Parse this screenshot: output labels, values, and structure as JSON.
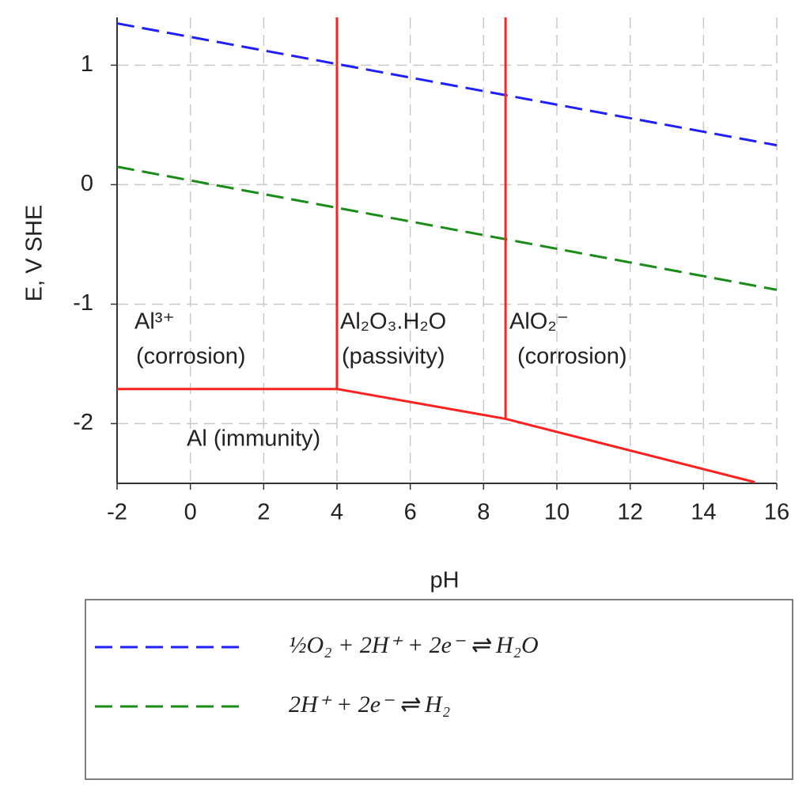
{
  "chart_data": {
    "type": "line",
    "xlabel": "pH",
    "ylabel": "E, V SHE",
    "xlim": [
      -2,
      16
    ],
    "ylim": [
      -2.5,
      1.4
    ],
    "xticks": [
      -2,
      0,
      2,
      4,
      6,
      8,
      10,
      12,
      14,
      16
    ],
    "yticks": [
      -2,
      -1,
      0,
      1
    ],
    "grid": true,
    "series": [
      {
        "name": "½O₂ + 2H⁺ + 2e⁻ ⇌ H₂O",
        "color": "#1f1fff",
        "dash": true,
        "x": [
          -2,
          16
        ],
        "values": [
          1.35,
          0.33
        ]
      },
      {
        "name": "2H⁺ + 2e⁻ ⇌ H₂",
        "color": "#1a8c1a",
        "dash": true,
        "x": [
          -2,
          16
        ],
        "values": [
          0.15,
          -0.88
        ]
      },
      {
        "color": "#ff2020",
        "dash": false,
        "x": [
          -2,
          4
        ],
        "values": [
          -1.71,
          -1.71
        ]
      },
      {
        "color": "#ff2020",
        "dash": false,
        "x": [
          4,
          4
        ],
        "values": [
          1.4,
          -1.71
        ]
      },
      {
        "color": "#ff2020",
        "dash": false,
        "x": [
          8.6,
          8.6
        ],
        "values": [
          1.4,
          -1.96
        ]
      },
      {
        "color": "#ff2020",
        "dash": false,
        "x": [
          4,
          8.6,
          15.4
        ],
        "values": [
          -1.71,
          -1.96,
          -2.49
        ]
      }
    ],
    "annotations": [
      "Al³⁺",
      "(corrosion)",
      "Al₂O₃.H₂O",
      "(passivity)",
      "AlO₂⁻",
      "(corrosion)",
      "Al (immunity)"
    ]
  }
}
